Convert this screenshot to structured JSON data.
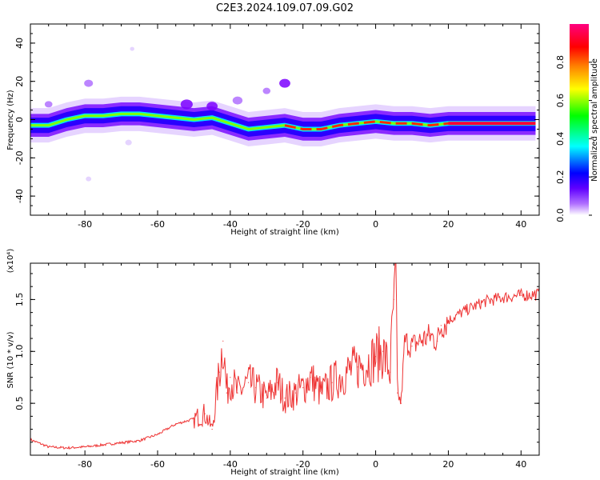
{
  "title": "C2E3.2024.109.07.09.G02",
  "chart_data": [
    {
      "type": "heatmap",
      "xlabel": "Height of straight line (km)",
      "ylabel": "Frequency (Hz)",
      "xlim": [
        -95,
        45
      ],
      "ylim": [
        -50,
        50
      ],
      "x_ticks": [
        -80,
        -60,
        -40,
        -20,
        0,
        20,
        40
      ],
      "x_tick_labels": [
        "-80",
        "-60",
        "-40",
        "-20",
        "0",
        "20",
        "40"
      ],
      "y_ticks": [
        -40,
        -20,
        0,
        20,
        40
      ],
      "y_tick_labels": [
        "-40",
        "-20",
        "0",
        "20",
        "40"
      ],
      "colorbar": {
        "label": "Normalized spectral amplitude",
        "range": [
          0,
          1
        ],
        "ticks": [
          0.0,
          0.2,
          0.4,
          0.6,
          0.8
        ],
        "tick_labels": [
          "0.0",
          "0.2",
          "0.4",
          "0.6",
          "0.8"
        ],
        "colormap": [
          "#ffffff",
          "#7a00ff",
          "#0000ff",
          "#00ffff",
          "#00ff00",
          "#ffff00",
          "#ff8000",
          "#ff0000",
          "#ff0080"
        ]
      },
      "ridge": {
        "x": [
          -95,
          -90,
          -85,
          -80,
          -75,
          -70,
          -65,
          -60,
          -55,
          -50,
          -45,
          -40,
          -35,
          -30,
          -25,
          -20,
          -15,
          -10,
          -5,
          0,
          5,
          10,
          15,
          20,
          25,
          30,
          35,
          40,
          44
        ],
        "frequency": [
          -3,
          -3,
          0,
          2,
          2,
          3,
          3,
          2,
          1,
          0,
          1,
          -2,
          -5,
          -4,
          -3,
          -5,
          -5,
          -3,
          -2,
          -1,
          -2,
          -2,
          -3,
          -2,
          -2,
          -2,
          -2,
          -2,
          -2
        ]
      },
      "blobs": [
        {
          "x": -79,
          "y": 19,
          "amp": 0.25
        },
        {
          "x": -79,
          "y": -31,
          "amp": 0.1
        },
        {
          "x": -67,
          "y": 37,
          "amp": 0.05
        },
        {
          "x": -30,
          "y": 15,
          "amp": 0.2
        },
        {
          "x": -25,
          "y": 19,
          "amp": 0.35
        },
        {
          "x": -38,
          "y": 10,
          "amp": 0.3
        },
        {
          "x": -52,
          "y": 8,
          "amp": 0.4
        },
        {
          "x": -45,
          "y": 7,
          "amp": 0.35
        },
        {
          "x": -90,
          "y": 8,
          "amp": 0.2
        },
        {
          "x": -68,
          "y": -12,
          "amp": 0.15
        }
      ]
    },
    {
      "type": "line",
      "xlabel": "Height of straight line (km)",
      "ylabel": "SNR (10 * v/v)",
      "y_multiplier": "(x10⁴)",
      "xlim": [
        -95,
        45
      ],
      "ylim": [
        0,
        1.85
      ],
      "x_ticks": [
        -80,
        -60,
        -40,
        -20,
        0,
        20,
        40
      ],
      "x_tick_labels": [
        "-80",
        "-60",
        "-40",
        "-20",
        "0",
        "20",
        "40"
      ],
      "y_ticks": [
        0.5,
        1.0,
        1.5
      ],
      "y_tick_labels": [
        "0.5",
        "1.0",
        "1.5"
      ],
      "color": "#ee3333",
      "series": [
        {
          "x": [
            -95,
            -90,
            -85,
            -80,
            -75,
            -70,
            -65,
            -60,
            -55,
            -50,
            -47,
            -45,
            -43,
            -42,
            -41,
            -40,
            -38,
            -35,
            -33,
            -30,
            -27,
            -25,
            -22,
            -20,
            -18,
            -15,
            -12,
            -10,
            -8,
            -5,
            -2,
            0,
            2,
            4,
            5,
            5.6,
            6,
            7,
            8,
            10,
            12,
            15,
            17,
            18,
            20,
            25,
            30,
            35,
            40,
            44
          ],
          "y": [
            0.15,
            0.08,
            0.07,
            0.08,
            0.1,
            0.12,
            0.14,
            0.2,
            0.3,
            0.35,
            0.4,
            0.25,
            0.8,
            1.1,
            0.6,
            0.75,
            0.6,
            0.7,
            0.65,
            0.55,
            0.7,
            0.55,
            0.6,
            0.65,
            0.75,
            0.6,
            0.7,
            0.75,
            0.8,
            0.85,
            0.9,
            0.95,
            1.0,
            0.8,
            1.5,
            1.85,
            0.6,
            0.5,
            1.1,
            1.05,
            1.1,
            1.15,
            1.1,
            1.25,
            1.3,
            1.4,
            1.48,
            1.52,
            1.54,
            1.55
          ]
        }
      ]
    }
  ]
}
